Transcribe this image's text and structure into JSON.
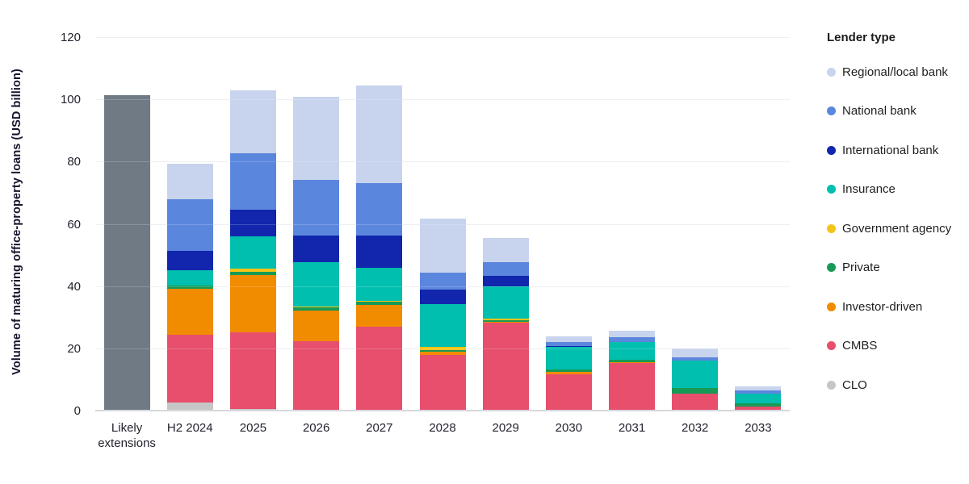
{
  "legend": {
    "title": "Lender type",
    "items": [
      {
        "label": "Regional/local bank",
        "color": "#c8d3ed"
      },
      {
        "label": "National bank",
        "color": "#5b86dd"
      },
      {
        "label": "International bank",
        "color": "#1126ad"
      },
      {
        "label": "Insurance",
        "color": "#00bfae"
      },
      {
        "label": "Government agency",
        "color": "#f3c318"
      },
      {
        "label": "Private",
        "color": "#169a55"
      },
      {
        "label": "Investor-driven",
        "color": "#f18b00"
      },
      {
        "label": "CMBS",
        "color": "#e74f6d"
      },
      {
        "label": "CLO",
        "color": "#c6c6c6"
      }
    ]
  },
  "chart_data": {
    "type": "bar",
    "stacked": true,
    "title": "",
    "xlabel": "",
    "ylabel": "Volume of maturing office-property loans (USD billion)",
    "ylim": [
      0,
      120
    ],
    "yticks": [
      0,
      20,
      40,
      60,
      80,
      100,
      120
    ],
    "grid": true,
    "legend_position": "right",
    "categories": [
      "Likely extensions",
      "H2 2024",
      "2025",
      "2026",
      "2027",
      "2028",
      "2029",
      "2030",
      "2031",
      "2032",
      "2033"
    ],
    "series": [
      {
        "name": "Likely extensions",
        "color": "#6f7a84",
        "values": [
          101.5,
          0,
          0,
          0,
          0,
          0,
          0,
          0,
          0,
          0,
          0
        ]
      },
      {
        "name": "CLO",
        "color": "#c6c6c6",
        "values": [
          0,
          2.8,
          0.7,
          0,
          0,
          0,
          0,
          0,
          0,
          0,
          0
        ]
      },
      {
        "name": "CMBS",
        "color": "#e74f6d",
        "values": [
          0,
          21.8,
          24.8,
          22.5,
          27.3,
          18.1,
          28.4,
          11.8,
          15.5,
          5.6,
          1.5
        ]
      },
      {
        "name": "Investor-driven",
        "color": "#f18b00",
        "values": [
          0,
          14.8,
          18.4,
          10.0,
          6.9,
          1.1,
          0.4,
          0.9,
          0.3,
          0,
          0
        ]
      },
      {
        "name": "Private",
        "color": "#169a55",
        "values": [
          0,
          1.0,
          1.0,
          1.0,
          1.0,
          0.5,
          0.5,
          0.9,
          0.8,
          2.0,
          1.1
        ]
      },
      {
        "name": "Government agency",
        "color": "#f3c318",
        "values": [
          0,
          0,
          0.9,
          0.2,
          0.2,
          1.1,
          0.5,
          0,
          0,
          0,
          0
        ]
      },
      {
        "name": "Insurance",
        "color": "#00bfae",
        "values": [
          0,
          5.0,
          10.5,
          14.3,
          10.8,
          13.6,
          10.4,
          7.1,
          5.7,
          8.8,
          3.0
        ]
      },
      {
        "name": "International bank",
        "color": "#1126ad",
        "values": [
          0,
          6.2,
          8.5,
          8.6,
          10.4,
          4.7,
          3.4,
          0.4,
          0,
          0,
          0
        ]
      },
      {
        "name": "National bank",
        "color": "#5b86dd",
        "values": [
          0,
          16.6,
          18.2,
          17.7,
          16.8,
          5.6,
          4.4,
          1.1,
          1.6,
          0.9,
          1.1
        ]
      },
      {
        "name": "Regional/local bank",
        "color": "#c8d3ed",
        "values": [
          0,
          11.4,
          20.2,
          26.7,
          31.4,
          17.3,
          7.8,
          2.0,
          1.9,
          2.9,
          1.3
        ]
      }
    ]
  }
}
